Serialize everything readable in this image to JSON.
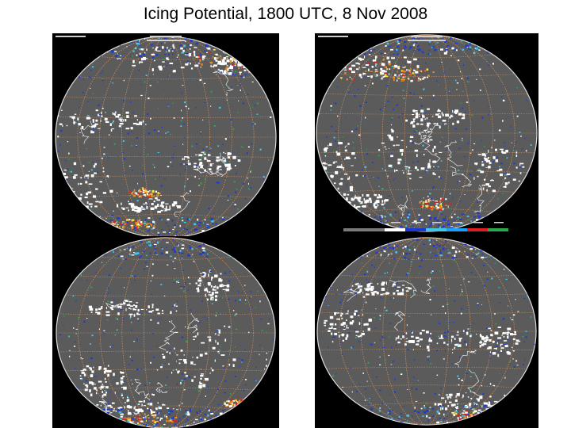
{
  "title": "Icing Potential, 1800 UTC, 8 Nov 2008",
  "colors": {
    "globe": "#5b5b5b",
    "grid": "#c98c5a",
    "cloud": "#ffffff",
    "blue": "#1a3bd6",
    "cyan": "#3fc8e8",
    "green": "#2aa84a",
    "orange": "#f08a1c",
    "red": "#e02020",
    "yellow": "#f2e24a"
  },
  "panels": [
    {
      "id": "nw",
      "view": "north-pacific"
    },
    {
      "id": "ne",
      "view": "americas"
    },
    {
      "id": "sw",
      "view": "africa-atlantic"
    },
    {
      "id": "se",
      "view": "south-pacific"
    }
  ]
}
